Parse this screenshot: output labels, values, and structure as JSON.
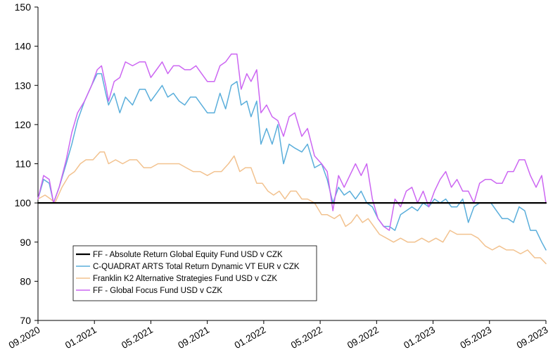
{
  "chart_data": {
    "type": "line",
    "title": "",
    "xlabel": "",
    "ylabel": "",
    "ylim": [
      70,
      150
    ],
    "yticks": [
      70,
      80,
      90,
      100,
      110,
      120,
      130,
      140,
      150
    ],
    "xlim": [
      0,
      36
    ],
    "xticks": [
      {
        "label": "09.2020",
        "pos": 0
      },
      {
        "label": "01.2021",
        "pos": 4
      },
      {
        "label": "05.2021",
        "pos": 8
      },
      {
        "label": "09.2021",
        "pos": 12
      },
      {
        "label": "01.2022",
        "pos": 16
      },
      {
        "label": "05.2022",
        "pos": 20
      },
      {
        "label": "09.2022",
        "pos": 24
      },
      {
        "label": "01.2023",
        "pos": 28
      },
      {
        "label": "05.2023",
        "pos": 32
      },
      {
        "label": "09.2023",
        "pos": 36
      }
    ],
    "grid": false,
    "legend": "bottom-left",
    "series": [
      {
        "name": "FF - Absolute Return Global Equity Fund USD v CZK",
        "color": "#000000",
        "width": 2.2,
        "points": [
          [
            0,
            100
          ],
          [
            36,
            100
          ]
        ]
      },
      {
        "name": "C-QUADRAT ARTS Total Return Dynamic VT EUR v CZK",
        "color": "#5aaedb",
        "width": 1.5,
        "points": [
          [
            0,
            101
          ],
          [
            0.4,
            106
          ],
          [
            0.8,
            105
          ],
          [
            1.1,
            100
          ],
          [
            1.5,
            104
          ],
          [
            2,
            110
          ],
          [
            2.4,
            115
          ],
          [
            2.8,
            121
          ],
          [
            3.3,
            126
          ],
          [
            3.8,
            130
          ],
          [
            4.2,
            133
          ],
          [
            4.5,
            133
          ],
          [
            4.8,
            128
          ],
          [
            5.0,
            125
          ],
          [
            5.4,
            128
          ],
          [
            5.8,
            123
          ],
          [
            6.2,
            127
          ],
          [
            6.7,
            125
          ],
          [
            7.2,
            129
          ],
          [
            7.6,
            129
          ],
          [
            8,
            126
          ],
          [
            8.4,
            128
          ],
          [
            8.8,
            130
          ],
          [
            9.2,
            127
          ],
          [
            9.6,
            128
          ],
          [
            10,
            126
          ],
          [
            10.4,
            125
          ],
          [
            10.8,
            127
          ],
          [
            11.2,
            127
          ],
          [
            11.6,
            125
          ],
          [
            12,
            123
          ],
          [
            12.5,
            123
          ],
          [
            12.9,
            128
          ],
          [
            13.3,
            124
          ],
          [
            13.7,
            130
          ],
          [
            14.1,
            131
          ],
          [
            14.4,
            125
          ],
          [
            14.8,
            126
          ],
          [
            15.1,
            122
          ],
          [
            15.5,
            126
          ],
          [
            15.8,
            115
          ],
          [
            16.2,
            119
          ],
          [
            16.6,
            115
          ],
          [
            17.0,
            120
          ],
          [
            17.4,
            110
          ],
          [
            17.8,
            115
          ],
          [
            18.2,
            114
          ],
          [
            18.7,
            113
          ],
          [
            19.1,
            115
          ],
          [
            19.6,
            109
          ],
          [
            20.1,
            110
          ],
          [
            20.5,
            106
          ],
          [
            20.9,
            100
          ],
          [
            21.3,
            104
          ],
          [
            21.7,
            102
          ],
          [
            22.1,
            103
          ],
          [
            22.5,
            101
          ],
          [
            22.9,
            103
          ],
          [
            23.3,
            100
          ],
          [
            23.7,
            99
          ],
          [
            24.1,
            96
          ],
          [
            24.5,
            94
          ],
          [
            24.9,
            94
          ],
          [
            25.3,
            93
          ],
          [
            25.7,
            97
          ],
          [
            26.1,
            98
          ],
          [
            26.5,
            99
          ],
          [
            26.9,
            98
          ],
          [
            27.3,
            100
          ],
          [
            27.7,
            99
          ],
          [
            28.1,
            101
          ],
          [
            28.5,
            100
          ],
          [
            28.9,
            101
          ],
          [
            29.3,
            99
          ],
          [
            29.7,
            99
          ],
          [
            30.1,
            101
          ],
          [
            30.5,
            95
          ],
          [
            30.9,
            99
          ],
          [
            31.3,
            100
          ],
          [
            31.7,
            100
          ],
          [
            32.1,
            100
          ],
          [
            32.5,
            98
          ],
          [
            32.9,
            96
          ],
          [
            33.3,
            96
          ],
          [
            33.7,
            95
          ],
          [
            34.1,
            99
          ],
          [
            34.5,
            98
          ],
          [
            34.9,
            93
          ],
          [
            35.3,
            93
          ],
          [
            35.7,
            90
          ],
          [
            36,
            88
          ]
        ]
      },
      {
        "name": "Franklin K2 Alternative Strategies Fund USD v CZK",
        "color": "#f2c28f",
        "width": 1.5,
        "points": [
          [
            0,
            101
          ],
          [
            0.5,
            102
          ],
          [
            0.9,
            101
          ],
          [
            1.2,
            100
          ],
          [
            1.7,
            104
          ],
          [
            2.2,
            107
          ],
          [
            2.6,
            108
          ],
          [
            3.0,
            110
          ],
          [
            3.4,
            111
          ],
          [
            3.9,
            111
          ],
          [
            4.4,
            113
          ],
          [
            4.7,
            113
          ],
          [
            5.0,
            110
          ],
          [
            5.5,
            111
          ],
          [
            6.0,
            110
          ],
          [
            6.5,
            111
          ],
          [
            7.0,
            111
          ],
          [
            7.5,
            109
          ],
          [
            8.0,
            109
          ],
          [
            8.5,
            110
          ],
          [
            9.0,
            110
          ],
          [
            9.5,
            110
          ],
          [
            10.0,
            110
          ],
          [
            10.5,
            109
          ],
          [
            11.0,
            108
          ],
          [
            11.5,
            108
          ],
          [
            12.0,
            107
          ],
          [
            12.5,
            108
          ],
          [
            13.0,
            108
          ],
          [
            13.5,
            110
          ],
          [
            13.9,
            112
          ],
          [
            14.3,
            108
          ],
          [
            14.7,
            109
          ],
          [
            15.1,
            109
          ],
          [
            15.5,
            105
          ],
          [
            15.9,
            105
          ],
          [
            16.3,
            103
          ],
          [
            16.7,
            102
          ],
          [
            17.1,
            103
          ],
          [
            17.5,
            101
          ],
          [
            17.9,
            103
          ],
          [
            18.3,
            103
          ],
          [
            18.7,
            101
          ],
          [
            19.1,
            101
          ],
          [
            19.6,
            100
          ],
          [
            20.1,
            97
          ],
          [
            20.5,
            97
          ],
          [
            21.0,
            96
          ],
          [
            21.4,
            97
          ],
          [
            21.8,
            94
          ],
          [
            22.2,
            95
          ],
          [
            22.6,
            97
          ],
          [
            23.0,
            95
          ],
          [
            23.4,
            96
          ],
          [
            23.8,
            94
          ],
          [
            24.2,
            92
          ],
          [
            24.7,
            91
          ],
          [
            25.2,
            90
          ],
          [
            25.7,
            91
          ],
          [
            26.2,
            90
          ],
          [
            26.7,
            90
          ],
          [
            27.2,
            91
          ],
          [
            27.7,
            90
          ],
          [
            28.2,
            91
          ],
          [
            28.7,
            90
          ],
          [
            29.2,
            93
          ],
          [
            29.7,
            92
          ],
          [
            30.2,
            92
          ],
          [
            30.7,
            92
          ],
          [
            31.2,
            91
          ],
          [
            31.7,
            89
          ],
          [
            32.2,
            88
          ],
          [
            32.7,
            89
          ],
          [
            33.2,
            88
          ],
          [
            33.7,
            88
          ],
          [
            34.2,
            87
          ],
          [
            34.7,
            88
          ],
          [
            35.2,
            86
          ],
          [
            35.6,
            86
          ],
          [
            36,
            84.5
          ]
        ]
      },
      {
        "name": "FF - Global Focus Fund USD v CZK",
        "color": "#cc66f2",
        "width": 1.5,
        "points": [
          [
            0,
            101
          ],
          [
            0.4,
            107
          ],
          [
            0.8,
            106
          ],
          [
            1.1,
            100
          ],
          [
            1.5,
            104
          ],
          [
            2.0,
            111
          ],
          [
            2.4,
            118
          ],
          [
            2.8,
            123
          ],
          [
            3.3,
            126
          ],
          [
            3.8,
            130
          ],
          [
            4.2,
            134
          ],
          [
            4.5,
            135
          ],
          [
            4.8,
            130
          ],
          [
            5.0,
            126
          ],
          [
            5.4,
            131
          ],
          [
            5.8,
            132
          ],
          [
            6.2,
            136
          ],
          [
            6.7,
            135
          ],
          [
            7.2,
            136
          ],
          [
            7.6,
            136
          ],
          [
            8.0,
            132
          ],
          [
            8.4,
            134
          ],
          [
            8.8,
            136
          ],
          [
            9.2,
            133
          ],
          [
            9.6,
            135
          ],
          [
            10.0,
            135
          ],
          [
            10.4,
            134
          ],
          [
            10.8,
            134
          ],
          [
            11.2,
            135
          ],
          [
            11.6,
            133
          ],
          [
            12.0,
            131
          ],
          [
            12.5,
            131
          ],
          [
            12.9,
            135
          ],
          [
            13.3,
            136
          ],
          [
            13.7,
            138
          ],
          [
            14.1,
            138
          ],
          [
            14.4,
            129
          ],
          [
            14.8,
            133
          ],
          [
            15.1,
            131
          ],
          [
            15.5,
            134
          ],
          [
            15.8,
            123
          ],
          [
            16.2,
            125
          ],
          [
            16.6,
            122
          ],
          [
            17.0,
            121
          ],
          [
            17.4,
            117
          ],
          [
            17.8,
            122
          ],
          [
            18.2,
            123
          ],
          [
            18.7,
            117
          ],
          [
            19.1,
            119
          ],
          [
            19.6,
            112
          ],
          [
            20.1,
            110
          ],
          [
            20.5,
            108
          ],
          [
            20.9,
            98
          ],
          [
            21.3,
            107
          ],
          [
            21.7,
            104
          ],
          [
            22.1,
            107
          ],
          [
            22.5,
            110
          ],
          [
            22.9,
            107
          ],
          [
            23.3,
            110
          ],
          [
            23.7,
            101
          ],
          [
            24.1,
            96
          ],
          [
            24.5,
            94
          ],
          [
            24.9,
            93
          ],
          [
            25.3,
            101
          ],
          [
            25.7,
            99
          ],
          [
            26.1,
            103
          ],
          [
            26.5,
            104
          ],
          [
            26.9,
            100
          ],
          [
            27.3,
            103
          ],
          [
            27.7,
            99
          ],
          [
            28.1,
            103
          ],
          [
            28.5,
            106
          ],
          [
            28.9,
            108
          ],
          [
            29.3,
            104
          ],
          [
            29.7,
            106
          ],
          [
            30.1,
            103
          ],
          [
            30.5,
            103
          ],
          [
            30.9,
            100
          ],
          [
            31.3,
            105
          ],
          [
            31.7,
            106
          ],
          [
            32.1,
            106
          ],
          [
            32.5,
            105
          ],
          [
            32.9,
            105
          ],
          [
            33.3,
            108
          ],
          [
            33.7,
            108
          ],
          [
            34.1,
            111
          ],
          [
            34.5,
            111
          ],
          [
            34.9,
            107
          ],
          [
            35.3,
            104
          ],
          [
            35.7,
            107
          ],
          [
            36,
            100
          ]
        ]
      }
    ]
  }
}
